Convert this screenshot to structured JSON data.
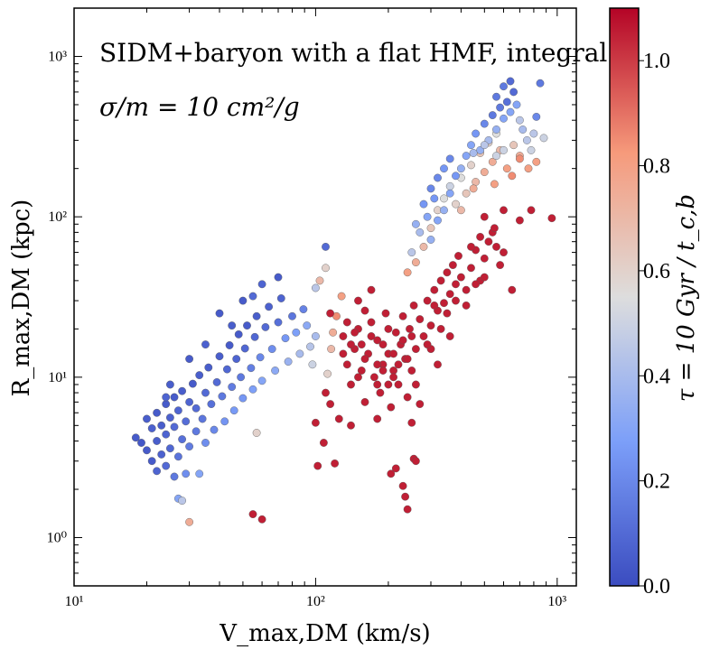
{
  "chart_data": {
    "type": "scatter",
    "title": "SIDM+baryon with a flat HMF, integral",
    "annotation": "σ/m = 10 cm²/g",
    "xlabel": "V_max,DM (km/s)",
    "ylabel": "R_max,DM (kpc)",
    "xscale": "log",
    "yscale": "log",
    "xlim": [
      10,
      1200
    ],
    "ylim": [
      0.5,
      2000
    ],
    "x_major_ticks": [
      {
        "value": 10,
        "label": "10¹"
      },
      {
        "value": 100,
        "label": "10²"
      },
      {
        "value": 1000,
        "label": "10³"
      }
    ],
    "y_major_ticks": [
      {
        "value": 1,
        "label": "10⁰"
      },
      {
        "value": 10,
        "label": "10¹"
      },
      {
        "value": 100,
        "label": "10²"
      },
      {
        "value": 1000,
        "label": "10³"
      }
    ],
    "colorbar": {
      "label": "τ = 10 Gyr / t_c,b",
      "cmap": "coolwarm",
      "range": [
        0.0,
        1.1
      ],
      "ticks": [
        0.0,
        0.2,
        0.4,
        0.6,
        0.8,
        1.0
      ],
      "tick_labels": [
        "0.0",
        "0.2",
        "0.4",
        "0.6",
        "0.8",
        "1.0"
      ]
    },
    "marker_edge_color": "#555555",
    "points": [
      [
        18,
        4.2,
        0.05
      ],
      [
        19,
        3.9,
        0.04
      ],
      [
        20,
        3.5,
        0.05
      ],
      [
        20,
        5.5,
        0.06
      ],
      [
        21,
        3.0,
        0.05
      ],
      [
        21,
        4.8,
        0.07
      ],
      [
        22,
        2.6,
        0.08
      ],
      [
        22,
        4.0,
        0.06
      ],
      [
        22,
        6.0,
        0.05
      ],
      [
        23,
        3.3,
        0.07
      ],
      [
        23,
        5.0,
        0.06
      ],
      [
        24,
        2.8,
        0.1
      ],
      [
        24,
        4.4,
        0.08
      ],
      [
        24,
        6.8,
        0.05
      ],
      [
        25,
        3.6,
        0.09
      ],
      [
        25,
        5.6,
        0.07
      ],
      [
        26,
        2.4,
        0.15
      ],
      [
        26,
        4.9,
        0.1
      ],
      [
        26,
        7.5,
        0.05
      ],
      [
        27,
        3.2,
        0.13
      ],
      [
        27,
        6.2,
        0.08
      ],
      [
        28,
        4.1,
        0.12
      ],
      [
        28,
        8.2,
        0.06
      ],
      [
        29,
        2.5,
        0.22
      ],
      [
        29,
        5.3,
        0.11
      ],
      [
        30,
        3.7,
        0.16
      ],
      [
        30,
        7.0,
        0.08
      ],
      [
        31,
        9.1,
        0.05
      ],
      [
        32,
        4.6,
        0.15
      ],
      [
        32,
        6.4,
        0.1
      ],
      [
        33,
        2.5,
        0.3
      ],
      [
        33,
        10.3,
        0.06
      ],
      [
        34,
        5.5,
        0.14
      ],
      [
        35,
        8.0,
        0.1
      ],
      [
        35,
        3.9,
        0.22
      ],
      [
        36,
        11.5,
        0.06
      ],
      [
        37,
        6.8,
        0.12
      ],
      [
        38,
        4.7,
        0.2
      ],
      [
        39,
        9.3,
        0.1
      ],
      [
        40,
        13.5,
        0.06
      ],
      [
        41,
        7.6,
        0.15
      ],
      [
        42,
        5.3,
        0.24
      ],
      [
        43,
        11.2,
        0.09
      ],
      [
        44,
        15.8,
        0.05
      ],
      [
        45,
        8.7,
        0.16
      ],
      [
        46,
        6.2,
        0.26
      ],
      [
        47,
        13.0,
        0.08
      ],
      [
        48,
        18.5,
        0.05
      ],
      [
        49,
        10.0,
        0.15
      ],
      [
        50,
        7.4,
        0.25
      ],
      [
        51,
        15.1,
        0.09
      ],
      [
        52,
        21.0,
        0.05
      ],
      [
        54,
        11.4,
        0.17
      ],
      [
        55,
        8.4,
        0.28
      ],
      [
        56,
        17.8,
        0.09
      ],
      [
        57,
        24.0,
        0.06
      ],
      [
        59,
        13.3,
        0.2
      ],
      [
        60,
        9.5,
        0.3
      ],
      [
        62,
        20.5,
        0.1
      ],
      [
        64,
        27.5,
        0.07
      ],
      [
        66,
        15.0,
        0.22
      ],
      [
        68,
        11.0,
        0.32
      ],
      [
        70,
        22.0,
        0.12
      ],
      [
        72,
        31.0,
        0.08
      ],
      [
        75,
        17.5,
        0.25
      ],
      [
        77,
        12.5,
        0.36
      ],
      [
        80,
        24.0,
        0.14
      ],
      [
        83,
        19.0,
        0.28
      ],
      [
        86,
        14.0,
        0.4
      ],
      [
        89,
        26.5,
        0.18
      ],
      [
        92,
        21.0,
        0.32
      ],
      [
        95,
        15.5,
        0.44
      ],
      [
        97,
        12.0,
        0.5
      ],
      [
        100,
        18.0,
        0.4
      ],
      [
        70,
        42,
        0.05
      ],
      [
        60,
        38,
        0.08
      ],
      [
        50,
        30,
        0.05
      ],
      [
        40,
        25,
        0.05
      ],
      [
        30,
        13,
        0.05
      ],
      [
        25,
        9,
        0.06
      ],
      [
        24,
        7.5,
        0.08
      ],
      [
        35,
        16,
        0.07
      ],
      [
        45,
        21,
        0.06
      ],
      [
        55,
        32,
        0.1
      ],
      [
        110,
        65,
        0.1
      ],
      [
        27,
        1.75,
        0.3
      ],
      [
        28,
        1.7,
        0.45
      ],
      [
        30,
        1.25,
        0.75
      ],
      [
        57,
        4.5,
        0.6
      ],
      [
        55,
        1.4,
        1.05
      ],
      [
        60,
        1.3,
        1.05
      ],
      [
        100,
        5.2,
        1.05
      ],
      [
        102,
        2.8,
        1.05
      ],
      [
        108,
        3.9,
        1.05
      ],
      [
        115,
        6.8,
        1.05
      ],
      [
        120,
        2.9,
        1.05
      ],
      [
        110,
        8.0,
        1.05
      ],
      [
        125,
        5.5,
        1.05
      ],
      [
        112,
        10.5,
        0.6
      ],
      [
        116,
        15.0,
        0.7
      ],
      [
        118,
        19.0,
        0.75
      ],
      [
        122,
        24.0,
        0.85
      ],
      [
        128,
        32.0,
        0.8
      ],
      [
        104,
        40.0,
        0.7
      ],
      [
        100,
        36.0,
        0.45
      ],
      [
        110,
        48,
        0.6
      ],
      [
        115,
        25,
        1.05
      ],
      [
        130,
        18,
        1.05
      ],
      [
        135,
        12,
        1.05
      ],
      [
        140,
        9,
        1.05
      ],
      [
        145,
        15,
        1.05
      ],
      [
        150,
        20,
        1.05
      ],
      [
        155,
        11,
        1.05
      ],
      [
        160,
        7,
        1.05
      ],
      [
        165,
        14,
        1.05
      ],
      [
        170,
        22,
        1.05
      ],
      [
        175,
        10,
        1.05
      ],
      [
        180,
        17,
        1.05
      ],
      [
        185,
        8,
        1.05
      ],
      [
        190,
        12,
        1.05
      ],
      [
        195,
        25,
        1.05
      ],
      [
        200,
        14,
        1.05
      ],
      [
        205,
        6.5,
        1.05
      ],
      [
        210,
        11,
        1.05
      ],
      [
        215,
        19,
        1.05
      ],
      [
        220,
        9,
        1.05
      ],
      [
        225,
        16,
        1.05
      ],
      [
        230,
        24,
        1.05
      ],
      [
        235,
        13,
        1.05
      ],
      [
        240,
        7.5,
        1.05
      ],
      [
        245,
        20,
        1.05
      ],
      [
        250,
        11,
        1.05
      ],
      [
        255,
        28,
        1.05
      ],
      [
        260,
        15,
        1.05
      ],
      [
        270,
        23,
        1.05
      ],
      [
        280,
        18,
        1.05
      ],
      [
        290,
        30,
        1.05
      ],
      [
        300,
        21,
        1.05
      ],
      [
        310,
        35,
        1.05
      ],
      [
        320,
        26,
        1.05
      ],
      [
        330,
        40,
        1.05
      ],
      [
        340,
        29,
        1.05
      ],
      [
        350,
        45,
        1.05
      ],
      [
        360,
        33,
        1.05
      ],
      [
        370,
        50,
        1.05
      ],
      [
        380,
        38,
        1.05
      ],
      [
        390,
        57,
        1.05
      ],
      [
        400,
        42,
        1.05
      ],
      [
        420,
        35,
        1.05
      ],
      [
        440,
        48,
        1.05
      ],
      [
        460,
        62,
        1.05
      ],
      [
        480,
        40,
        1.05
      ],
      [
        500,
        55,
        1.05
      ],
      [
        520,
        70,
        1.05
      ],
      [
        540,
        80,
        1.05
      ],
      [
        560,
        65,
        1.05
      ],
      [
        580,
        50,
        1.05
      ],
      [
        600,
        60,
        1.05
      ],
      [
        130,
        14,
        1.05
      ],
      [
        140,
        16,
        1.05
      ],
      [
        150,
        10,
        1.05
      ],
      [
        160,
        13,
        1.05
      ],
      [
        170,
        18,
        1.05
      ],
      [
        180,
        12,
        1.05
      ],
      [
        190,
        16,
        1.05
      ],
      [
        200,
        9,
        1.05
      ],
      [
        210,
        14,
        1.05
      ],
      [
        220,
        12,
        1.05
      ],
      [
        230,
        17,
        1.05
      ],
      [
        240,
        13,
        1.05
      ],
      [
        250,
        18,
        1.05
      ],
      [
        205,
        2.5,
        1.05
      ],
      [
        215,
        2.7,
        1.05
      ],
      [
        230,
        2.1,
        1.05
      ],
      [
        235,
        1.8,
        1.05
      ],
      [
        240,
        1.5,
        1.05
      ],
      [
        255,
        3.1,
        1.05
      ],
      [
        260,
        3.0,
        1.05
      ],
      [
        140,
        5.0,
        1.05
      ],
      [
        180,
        5.5,
        1.05
      ],
      [
        250,
        5.2,
        1.05
      ],
      [
        270,
        6.8,
        1.05
      ],
      [
        300,
        15,
        1.05
      ],
      [
        320,
        12,
        1.05
      ],
      [
        350,
        25,
        1.05
      ],
      [
        420,
        28,
        1.05
      ],
      [
        460,
        38,
        1.05
      ],
      [
        500,
        100,
        1.05
      ],
      [
        550,
        85,
        1.05
      ],
      [
        600,
        110,
        1.05
      ],
      [
        700,
        95,
        1.05
      ],
      [
        950,
        98,
        1.05
      ],
      [
        780,
        110,
        1.05
      ],
      [
        500,
        42,
        1.05
      ],
      [
        650,
        35,
        1.05
      ],
      [
        150,
        30,
        1.05
      ],
      [
        160,
        26,
        1.05
      ],
      [
        170,
        35,
        1.05
      ],
      [
        135,
        22,
        1.05
      ],
      [
        145,
        19,
        1.05
      ],
      [
        155,
        16,
        1.05
      ],
      [
        210,
        10,
        1.05
      ],
      [
        180,
        9,
        1.05
      ],
      [
        190,
        11,
        1.05
      ],
      [
        200,
        20,
        1.05
      ],
      [
        260,
        9,
        1.05
      ],
      [
        290,
        16,
        1.05
      ],
      [
        310,
        28,
        1.05
      ],
      [
        330,
        20,
        1.05
      ],
      [
        360,
        18,
        1.05
      ],
      [
        380,
        30,
        1.05
      ],
      [
        440,
        65,
        1.05
      ],
      [
        480,
        75,
        1.05
      ],
      [
        240,
        45,
        0.8
      ],
      [
        260,
        52,
        0.75
      ],
      [
        280,
        65,
        0.7
      ],
      [
        300,
        85,
        0.65
      ],
      [
        320,
        110,
        0.6
      ],
      [
        340,
        130,
        0.55
      ],
      [
        360,
        155,
        0.5
      ],
      [
        380,
        120,
        0.6
      ],
      [
        400,
        175,
        0.55
      ],
      [
        420,
        140,
        0.65
      ],
      [
        440,
        210,
        0.6
      ],
      [
        460,
        165,
        0.7
      ],
      [
        480,
        250,
        0.65
      ],
      [
        500,
        190,
        0.75
      ],
      [
        520,
        290,
        0.6
      ],
      [
        540,
        220,
        0.75
      ],
      [
        560,
        330,
        0.55
      ],
      [
        580,
        260,
        0.7
      ],
      [
        620,
        200,
        0.8
      ],
      [
        660,
        280,
        0.65
      ],
      [
        700,
        240,
        0.75
      ],
      [
        760,
        200,
        0.8
      ],
      [
        820,
        220,
        0.8
      ],
      [
        880,
        310,
        0.5
      ],
      [
        300,
        72,
        0.35
      ],
      [
        320,
        95,
        0.3
      ],
      [
        340,
        110,
        0.35
      ],
      [
        360,
        140,
        0.3
      ],
      [
        380,
        180,
        0.25
      ],
      [
        400,
        200,
        0.35
      ],
      [
        420,
        240,
        0.3
      ],
      [
        440,
        280,
        0.3
      ],
      [
        460,
        330,
        0.25
      ],
      [
        480,
        260,
        0.35
      ],
      [
        500,
        380,
        0.2
      ],
      [
        520,
        300,
        0.4
      ],
      [
        540,
        430,
        0.15
      ],
      [
        560,
        350,
        0.35
      ],
      [
        580,
        480,
        0.15
      ],
      [
        600,
        410,
        0.3
      ],
      [
        620,
        520,
        0.12
      ],
      [
        640,
        450,
        0.3
      ],
      [
        660,
        600,
        0.1
      ],
      [
        680,
        500,
        0.3
      ],
      [
        700,
        400,
        0.45
      ],
      [
        720,
        350,
        0.4
      ],
      [
        750,
        300,
        0.45
      ],
      [
        780,
        260,
        0.5
      ],
      [
        800,
        330,
        0.45
      ],
      [
        820,
        420,
        0.2
      ],
      [
        850,
        680,
        0.15
      ],
      [
        640,
        700,
        0.1
      ],
      [
        600,
        650,
        0.15
      ],
      [
        560,
        560,
        0.15
      ],
      [
        320,
        175,
        0.2
      ],
      [
        340,
        200,
        0.25
      ],
      [
        360,
        230,
        0.2
      ],
      [
        300,
        150,
        0.2
      ],
      [
        280,
        120,
        0.25
      ],
      [
        260,
        90,
        0.35
      ],
      [
        250,
        60,
        0.45
      ],
      [
        270,
        80,
        0.4
      ],
      [
        290,
        100,
        0.3
      ],
      [
        310,
        130,
        0.25
      ],
      [
        700,
        230,
        0.85
      ],
      [
        650,
        180,
        0.85
      ],
      [
        550,
        160,
        0.8
      ],
      [
        450,
        150,
        0.75
      ],
      [
        400,
        110,
        0.7
      ],
      [
        560,
        240,
        0.5
      ],
      [
        600,
        260,
        0.5
      ],
      [
        500,
        280,
        0.45
      ],
      [
        450,
        250,
        0.4
      ]
    ]
  }
}
